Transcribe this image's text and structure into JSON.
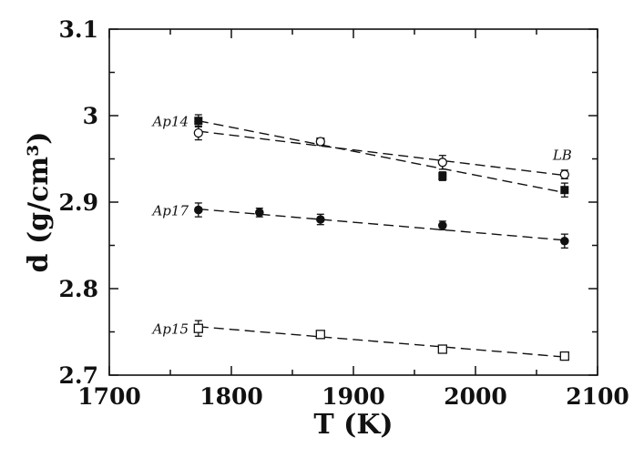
{
  "chart_data": {
    "type": "scatter",
    "title": "",
    "xlabel": "T (K)",
    "ylabel": "d (g/cm³)",
    "xlim": [
      1700,
      2100
    ],
    "ylim": [
      2.7,
      3.1
    ],
    "x_ticks": [
      "1700",
      "1800",
      "1900",
      "2000",
      "2100"
    ],
    "y_ticks": [
      "2.7",
      "2.8",
      "2.9",
      "3",
      "3.1"
    ],
    "grid": false,
    "series": [
      {
        "name": "Ap14",
        "marker": "filled-square",
        "points": [
          {
            "x": 1773,
            "y": 2.994,
            "err": 0.007
          },
          {
            "x": 1873,
            "y": 2.97,
            "err": 0.004
          },
          {
            "x": 1973,
            "y": 2.93,
            "err": 0.005
          },
          {
            "x": 2073,
            "y": 2.914,
            "err": 0.008
          }
        ],
        "fit": {
          "x": [
            1773,
            2073
          ],
          "y": [
            2.994,
            2.911
          ]
        }
      },
      {
        "name": "LB",
        "marker": "open-circle",
        "points": [
          {
            "x": 1773,
            "y": 2.98,
            "err": 0.008
          },
          {
            "x": 1873,
            "y": 2.97,
            "err": 0.004
          },
          {
            "x": 1973,
            "y": 2.946,
            "err": 0.008
          },
          {
            "x": 2073,
            "y": 2.932,
            "err": 0.005
          }
        ],
        "fit": {
          "x": [
            1773,
            2073
          ],
          "y": [
            2.982,
            2.931
          ]
        }
      },
      {
        "name": "Ap17",
        "marker": "filled-circle",
        "points": [
          {
            "x": 1773,
            "y": 2.891,
            "err": 0.008
          },
          {
            "x": 1823,
            "y": 2.888,
            "err": 0.005
          },
          {
            "x": 1873,
            "y": 2.88,
            "err": 0.006
          },
          {
            "x": 1973,
            "y": 2.873,
            "err": 0.005
          },
          {
            "x": 2073,
            "y": 2.855,
            "err": 0.008
          }
        ],
        "fit": {
          "x": [
            1773,
            2073
          ],
          "y": [
            2.892,
            2.856
          ]
        }
      },
      {
        "name": "Ap15",
        "marker": "open-square",
        "points": [
          {
            "x": 1773,
            "y": 2.754,
            "err": 0.009
          },
          {
            "x": 1873,
            "y": 2.747,
            "err": 0.003
          },
          {
            "x": 1973,
            "y": 2.73,
            "err": 0.003
          },
          {
            "x": 2073,
            "y": 2.722,
            "err": 0.003
          }
        ],
        "fit": {
          "x": [
            1773,
            2073
          ],
          "y": [
            2.756,
            2.721
          ]
        }
      }
    ],
    "colors": {
      "ink": "#111111",
      "background": "#ffffff"
    }
  }
}
